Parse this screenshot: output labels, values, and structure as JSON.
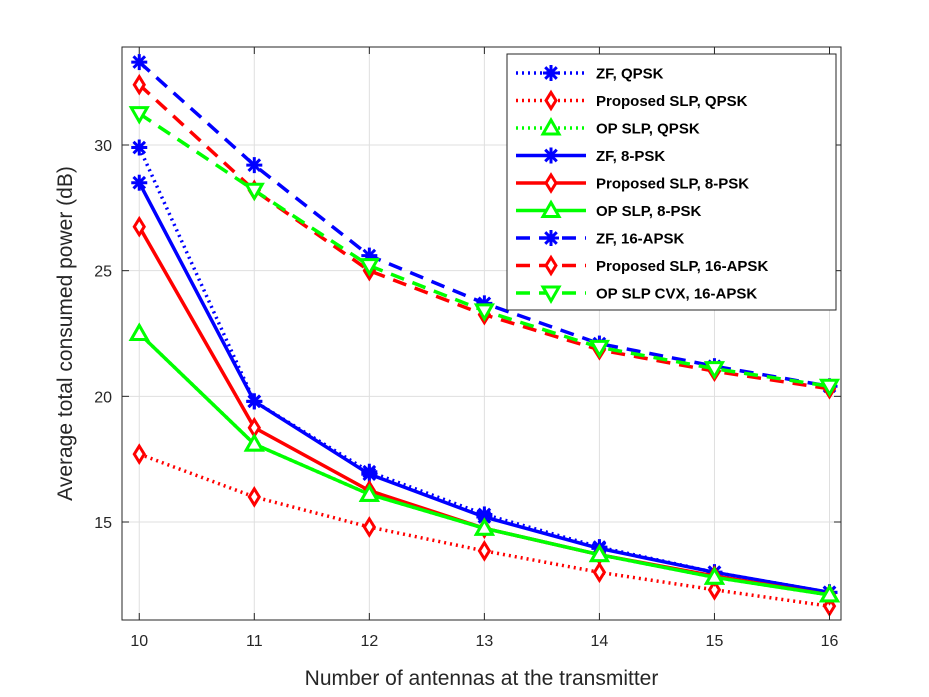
{
  "chart_data": {
    "type": "line",
    "title": "",
    "xlabel": "Number of antennas at the transmitter",
    "ylabel": "Average total consumed power (dB)",
    "x": [
      10,
      11,
      12,
      13,
      14,
      15,
      16
    ],
    "xlim": [
      9.85,
      16.1
    ],
    "ylim": [
      11.1,
      33.9
    ],
    "xticks": [
      10,
      11,
      12,
      13,
      14,
      15,
      16
    ],
    "yticks": [
      15,
      20,
      25,
      30
    ],
    "grid": true,
    "legend_position": "top-right",
    "series": [
      {
        "name": "ZF, QPSK",
        "color": "#0000ff",
        "dash": "dotted",
        "marker": "asterisk",
        "values": [
          29.9,
          19.8,
          17.0,
          15.3,
          14.0,
          13.0,
          12.2
        ]
      },
      {
        "name": "Proposed SLP, QPSK",
        "color": "#ff0000",
        "dash": "dotted",
        "marker": "diamond",
        "values": [
          17.7,
          16.0,
          14.8,
          13.85,
          13.0,
          12.3,
          11.65
        ]
      },
      {
        "name": "OP SLP, QPSK",
        "color": "#00ff00",
        "dash": "dotted",
        "marker": "triangle-up",
        "values": [
          22.5,
          18.1,
          16.1,
          14.75,
          13.7,
          12.8,
          12.1
        ]
      },
      {
        "name": "ZF, 8-PSK",
        "color": "#0000ff",
        "dash": "solid",
        "marker": "asterisk",
        "values": [
          28.5,
          19.8,
          16.9,
          15.2,
          13.95,
          13.0,
          12.2
        ]
      },
      {
        "name": "Proposed SLP, 8-PSK",
        "color": "#ff0000",
        "dash": "solid",
        "marker": "diamond",
        "values": [
          26.75,
          18.75,
          16.25,
          14.75,
          13.7,
          12.85,
          12.1
        ]
      },
      {
        "name": "OP SLP, 8-PSK",
        "color": "#00ff00",
        "dash": "solid",
        "marker": "triangle-up",
        "values": [
          22.5,
          18.1,
          16.1,
          14.75,
          13.7,
          12.8,
          12.1
        ]
      },
      {
        "name": "ZF, 16-APSK",
        "color": "#0000ff",
        "dash": "dashed",
        "marker": "asterisk",
        "values": [
          33.3,
          29.2,
          25.6,
          23.7,
          22.1,
          21.2,
          20.4
        ]
      },
      {
        "name": "Proposed SLP, 16-APSK",
        "color": "#ff0000",
        "dash": "dashed",
        "marker": "diamond",
        "values": [
          32.4,
          28.2,
          25.0,
          23.25,
          21.85,
          21.0,
          20.3
        ]
      },
      {
        "name": "OP SLP CVX, 16-APSK",
        "color": "#00ff00",
        "dash": "dashed",
        "marker": "triangle-down",
        "values": [
          31.25,
          28.2,
          25.2,
          23.4,
          21.95,
          21.1,
          20.4
        ]
      }
    ]
  }
}
